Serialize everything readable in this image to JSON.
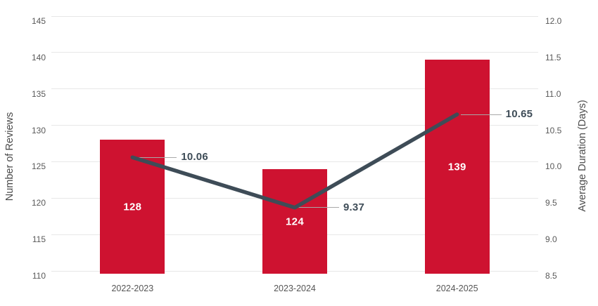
{
  "chart_data": {
    "type": "bar+line",
    "categories": [
      "2022-2023",
      "2023-2024",
      "2024-2025"
    ],
    "series": [
      {
        "name": "Number of Reviews",
        "type": "bar",
        "axis": "left",
        "values": [
          128,
          124,
          139
        ],
        "data_labels": [
          "128",
          "124",
          "139"
        ],
        "color": "#CE1230"
      },
      {
        "name": "Average Duration (Days)",
        "type": "line",
        "axis": "right",
        "values": [
          10.06,
          9.37,
          10.65
        ],
        "data_labels": [
          "10.06",
          "9.37",
          "10.65"
        ],
        "color": "#3E4C57"
      }
    ],
    "left_axis": {
      "title": "Number of Reviews",
      "min": 110,
      "max": 145,
      "tick_values": [
        110,
        115,
        120,
        125,
        130,
        135,
        140,
        145
      ],
      "tick_labels": [
        "110",
        "115",
        "120",
        "125",
        "130",
        "135",
        "140",
        "145"
      ]
    },
    "right_axis": {
      "title": "Average Duration (Days)",
      "min": 8.5,
      "max": 12.0,
      "tick_values": [
        8.5,
        9.0,
        9.5,
        10.0,
        10.5,
        11.0,
        11.5,
        12.0
      ],
      "tick_labels": [
        "8.5",
        "9.0",
        "9.5",
        "10.0",
        "10.5",
        "11.0",
        "11.5",
        "12.0"
      ]
    },
    "grid": true,
    "legend": "none",
    "colors": {
      "bar": "#CE1230",
      "line": "#3E4C57",
      "gridline": "#E7E7E7",
      "tick_text": "#595959",
      "x_label_text": "#555555",
      "axis_title_text": "#4A4A4A",
      "callout_text": "#3E4C57",
      "callout_line": "#A8A8A8",
      "bar_label": "#FFFFFF",
      "background": "#FFFFFF"
    }
  }
}
